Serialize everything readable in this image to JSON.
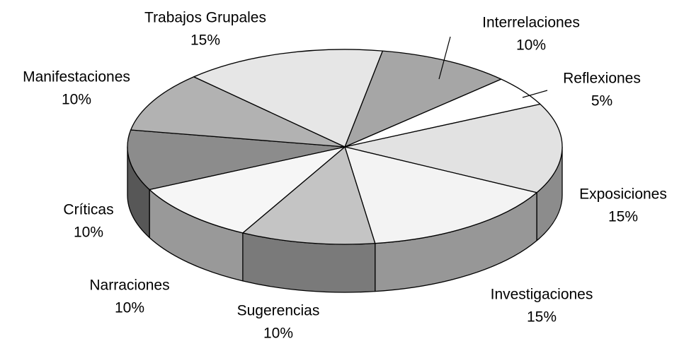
{
  "chart_data": {
    "type": "pie",
    "categories": [
      "Interrelaciones",
      "Reflexiones",
      "Exposiciones",
      "Investigaciones",
      "Sugerencias",
      "Narraciones",
      "Críticas",
      "Manifestaciones",
      "Trabajos Grupales"
    ],
    "values": [
      10,
      5,
      15,
      15,
      10,
      10,
      10,
      10,
      15
    ],
    "value_labels": [
      "10%",
      "5%",
      "15%",
      "15%",
      "10%",
      "10%",
      "10%",
      "10%",
      "15%"
    ],
    "colors": [
      "#a6a6a6",
      "#ffffff",
      "#e2e2e2",
      "#f3f3f3",
      "#c4c4c4",
      "#f6f6f6",
      "#8c8c8c",
      "#b2b2b2",
      "#e6e6e6"
    ]
  }
}
